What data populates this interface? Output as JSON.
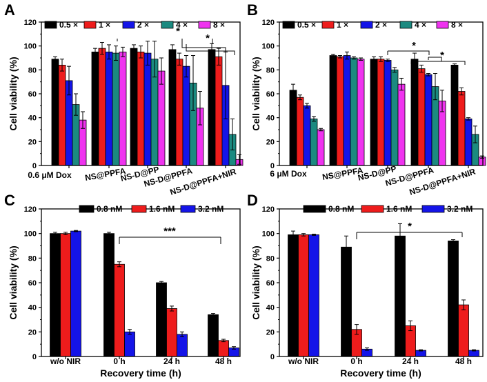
{
  "colors": {
    "black": "#000000",
    "red": "#ee1c1c",
    "blue": "#1414e8",
    "teal": "#1b8a80",
    "magenta": "#ef33ef"
  },
  "chart_data": [
    {
      "panel": "A",
      "type": "bar",
      "ylabel": "Cell viability (%)",
      "ylim": [
        0,
        120
      ],
      "yticks": [
        "0",
        "20",
        "40",
        "60",
        "80",
        "100",
        "120"
      ],
      "categories": [
        "0.6 μM Dox",
        "NS@PPFA",
        "NS-D@PP",
        "NS-D@PPFA",
        "NS-D@PPFA+NIR"
      ],
      "legend": [
        "0.5 ×",
        "1 ×",
        "2 ×",
        "4 ×",
        "8 ×"
      ],
      "series": [
        {
          "name": "0.5 ×",
          "values": [
            89,
            95,
            98,
            97,
            97
          ],
          "errors": [
            2,
            3,
            3,
            4,
            5
          ]
        },
        {
          "name": "1 ×",
          "values": [
            84,
            98,
            95,
            89,
            91
          ],
          "errors": [
            5,
            5,
            5,
            5,
            7
          ]
        },
        {
          "name": "2 ×",
          "values": [
            71,
            95,
            94,
            83,
            67
          ],
          "errors": [
            12,
            6,
            10,
            9,
            28
          ]
        },
        {
          "name": "4 ×",
          "values": [
            51,
            94,
            89,
            69,
            26
          ],
          "errors": [
            9,
            6,
            15,
            23,
            13
          ]
        },
        {
          "name": "8 ×",
          "values": [
            38,
            95,
            79,
            48,
            5
          ],
          "errors": [
            7,
            4,
            11,
            14,
            4
          ]
        }
      ],
      "significance": [
        "*",
        "*"
      ]
    },
    {
      "panel": "B",
      "type": "bar",
      "ylabel": "Cell viability (%)",
      "ylim": [
        0,
        120
      ],
      "yticks": [
        "0",
        "20",
        "40",
        "60",
        "80",
        "100",
        "120"
      ],
      "categories": [
        "6 μM Dox",
        "NS@PPFA",
        "NS-D@PP",
        "NS-D@PPFA",
        "NS-D@PPFA+NIR"
      ],
      "legend": [
        "0.5 ×",
        "1 ×",
        "2 ×",
        "4 ×",
        "8 ×"
      ],
      "series": [
        {
          "name": "0.5 ×",
          "values": [
            63,
            92,
            89,
            89,
            84
          ],
          "errors": [
            5,
            1,
            2,
            5,
            1
          ]
        },
        {
          "name": "1 ×",
          "values": [
            57,
            91,
            89,
            81,
            62
          ],
          "errors": [
            2,
            1,
            2,
            3,
            3
          ]
        },
        {
          "name": "2 ×",
          "values": [
            50,
            92,
            88,
            76,
            39
          ],
          "errors": [
            2,
            3,
            1,
            1,
            1
          ]
        },
        {
          "name": "4 ×",
          "values": [
            39,
            90,
            80,
            66,
            26
          ],
          "errors": [
            2,
            1,
            2,
            11,
            7
          ]
        },
        {
          "name": "8 ×",
          "values": [
            30,
            89,
            68,
            54,
            7
          ],
          "errors": [
            1,
            1,
            5,
            9,
            1
          ]
        }
      ],
      "significance": [
        "*",
        "*"
      ]
    },
    {
      "panel": "C",
      "type": "bar",
      "xlabel": "Recovery time (h)",
      "ylabel": "Cell viability (%)",
      "ylim": [
        0,
        120
      ],
      "yticks": [
        "0",
        "20",
        "40",
        "60",
        "80",
        "100",
        "120"
      ],
      "categories": [
        "w/o NIR",
        "0 h",
        "24 h",
        "48 h"
      ],
      "legend": [
        "0.8 nM",
        "1.6 nM",
        "3.2 nM"
      ],
      "series": [
        {
          "name": "0.8 nM",
          "values": [
            100,
            100,
            60,
            34
          ],
          "errors": [
            1,
            1,
            1,
            1
          ]
        },
        {
          "name": "1.6 nM",
          "values": [
            100,
            75,
            39,
            13
          ],
          "errors": [
            1,
            2,
            2,
            1
          ]
        },
        {
          "name": "3.2 nM",
          "values": [
            102,
            20,
            18,
            7
          ],
          "errors": [
            0.5,
            2,
            2,
            1
          ]
        }
      ],
      "significance": [
        "***"
      ]
    },
    {
      "panel": "D",
      "type": "bar",
      "xlabel": "Recovery time (h)",
      "ylabel": "Cell viability (%)",
      "ylim": [
        0,
        120
      ],
      "yticks": [
        "0",
        "20",
        "40",
        "60",
        "80",
        "100",
        "120"
      ],
      "categories": [
        "w/o NIR",
        "0 h",
        "24 h",
        "48 h"
      ],
      "legend": [
        "0.8 nM",
        "1.6 nM",
        "3.2 nM"
      ],
      "series": [
        {
          "name": "0.8 nM",
          "values": [
            99,
            89,
            98,
            94
          ],
          "errors": [
            3,
            9,
            10,
            1
          ]
        },
        {
          "name": "1.6 nM",
          "values": [
            99,
            22,
            25,
            42
          ],
          "errors": [
            1,
            4,
            4,
            4
          ]
        },
        {
          "name": "3.2 nM",
          "values": [
            99,
            6,
            5,
            5
          ],
          "errors": [
            0.5,
            1,
            0.5,
            0.5
          ]
        }
      ],
      "significance": [
        "*"
      ]
    }
  ]
}
